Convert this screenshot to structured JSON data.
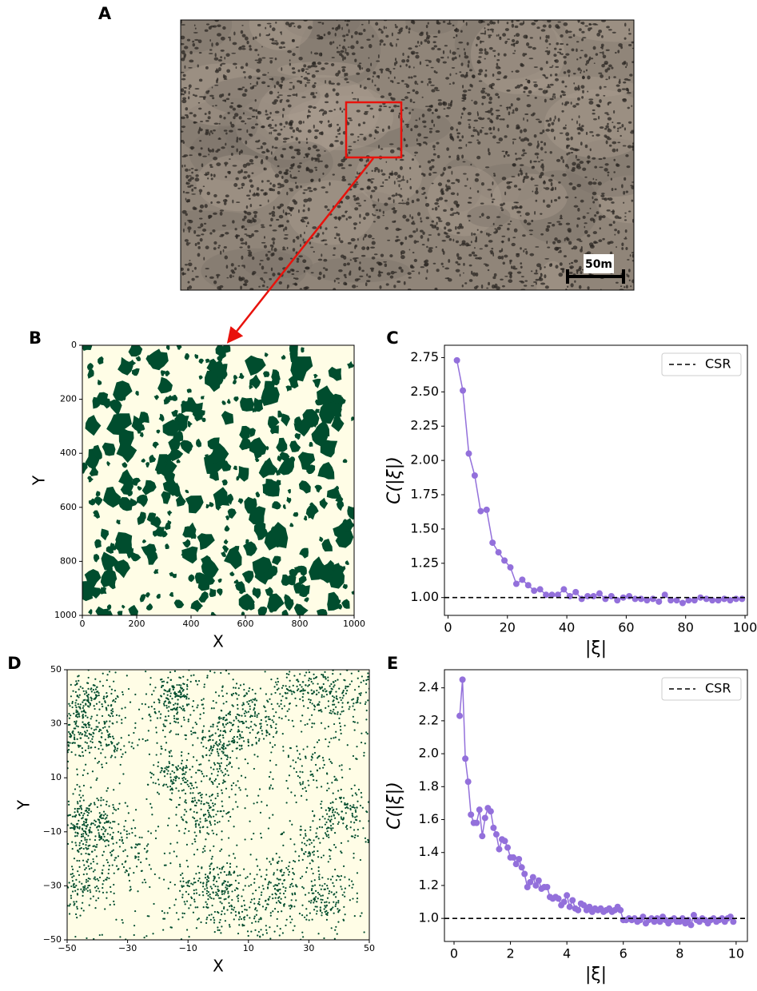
{
  "chart_data": [
    {
      "type": "photo",
      "panel_label": "A",
      "scale_bar": "50m"
    },
    {
      "type": "map",
      "panel_label": "B",
      "x_label": "X",
      "y_label": "Y",
      "xlim": [
        0,
        1000
      ],
      "ylim": [
        1000,
        0
      ],
      "xticks": [
        0,
        200,
        400,
        600,
        800,
        1000
      ],
      "yticks": [
        0,
        200,
        400,
        600,
        800,
        1000
      ],
      "background": "#fffde6",
      "color": "#004d2e"
    },
    {
      "type": "line",
      "panel_label": "C",
      "x_label": "|ξ|",
      "y_label": "C(|ξ|)",
      "xlim": [
        -1.2,
        100.8
      ],
      "ylim": [
        0.87,
        2.84
      ],
      "xticks": [
        0,
        20,
        40,
        60,
        80,
        100
      ],
      "yticks": [
        {
          "value": 1,
          "label": "1.00"
        },
        {
          "value": 1.25,
          "label": "1.25"
        },
        {
          "value": 1.5,
          "label": "1.50"
        },
        {
          "value": 1.75,
          "label": "1.75"
        },
        {
          "value": 2,
          "label": "2.00"
        },
        {
          "value": 2.25,
          "label": "2.25"
        },
        {
          "value": 2.5,
          "label": "2.50"
        },
        {
          "value": 2.75,
          "label": "2.75"
        }
      ],
      "series": [
        {
          "color": "#9370db",
          "x": [
            3,
            5,
            7,
            9,
            11,
            13,
            15,
            17,
            19,
            21,
            23,
            25,
            27,
            29,
            31,
            33,
            35,
            37,
            39,
            41,
            43,
            45,
            47,
            49,
            51,
            53,
            55,
            57,
            59,
            61,
            63,
            65,
            67,
            69,
            71,
            73,
            75,
            77,
            79,
            81,
            83,
            85,
            87,
            89,
            91,
            93,
            95,
            97,
            99
          ],
          "values": [
            2.73,
            2.51,
            2.05,
            1.89,
            1.63,
            1.64,
            1.4,
            1.33,
            1.27,
            1.22,
            1.1,
            1.13,
            1.09,
            1.05,
            1.06,
            1.02,
            1.02,
            1.02,
            1.06,
            1.01,
            1.04,
            0.99,
            1.01,
            1.01,
            1.03,
            0.99,
            1.01,
            0.98,
            1.0,
            1.01,
            0.99,
            0.99,
            0.98,
            0.99,
            0.97,
            1.02,
            0.98,
            0.98,
            0.96,
            0.98,
            0.98,
            1.0,
            0.99,
            0.98,
            0.98,
            0.99,
            0.98,
            0.99,
            0.99
          ]
        }
      ],
      "reference_line": {
        "name": "CSR",
        "value": 1,
        "color": "#000000"
      },
      "legend": "upper right"
    },
    {
      "type": "map",
      "panel_label": "D",
      "x_label": "X",
      "y_label": "Y",
      "xlim": [
        -50,
        50
      ],
      "ylim": [
        -50,
        50
      ],
      "xticks": [
        {
          "value": -50,
          "label": "−50"
        },
        {
          "value": -30,
          "label": "−30"
        },
        {
          "value": -10,
          "label": "−10"
        },
        10,
        30,
        50
      ],
      "yticks": [
        {
          "value": -50,
          "label": "−50"
        },
        {
          "value": -30,
          "label": "−30"
        },
        {
          "value": -10,
          "label": "−10"
        },
        10,
        30,
        50
      ],
      "background": "#fffde6",
      "color": "#004d2e"
    },
    {
      "type": "line",
      "panel_label": "E",
      "x_label": "|ξ|",
      "y_label": "C(|ξ|)",
      "xlim": [
        -0.34,
        10.4
      ],
      "ylim": [
        0.86,
        2.51
      ],
      "xticks": [
        0,
        2,
        4,
        6,
        8,
        10
      ],
      "yticks": [
        {
          "value": 1,
          "label": "1.0"
        },
        1.2,
        1.4,
        1.6,
        1.8,
        {
          "value": 2,
          "label": "2.0"
        },
        2.2,
        2.4
      ],
      "series": [
        {
          "color": "#9370db",
          "x": [
            0.2,
            0.3,
            0.4,
            0.5,
            0.6,
            0.7,
            0.8,
            0.9,
            1.0,
            1.1,
            1.2,
            1.3,
            1.4,
            1.5,
            1.6,
            1.7,
            1.8,
            1.9,
            2.0,
            2.1,
            2.2,
            2.3,
            2.4,
            2.5,
            2.6,
            2.7,
            2.8,
            2.9,
            3.0,
            3.1,
            3.2,
            3.3,
            3.4,
            3.5,
            3.6,
            3.7,
            3.8,
            3.9,
            4.0,
            4.1,
            4.2,
            4.3,
            4.4,
            4.5,
            4.6,
            4.7,
            4.8,
            4.9,
            5.0,
            5.1,
            5.2,
            5.3,
            5.4,
            5.5,
            5.6,
            5.7,
            5.8,
            5.9,
            6.0,
            6.1,
            6.2,
            6.3,
            6.4,
            6.5,
            6.6,
            6.7,
            6.8,
            6.9,
            7.0,
            7.1,
            7.2,
            7.3,
            7.4,
            7.5,
            7.6,
            7.7,
            7.8,
            7.9,
            8.0,
            8.1,
            8.2,
            8.3,
            8.4,
            8.5,
            8.6,
            8.7,
            8.8,
            8.9,
            9.0,
            9.1,
            9.2,
            9.3,
            9.4,
            9.5,
            9.6,
            9.7,
            9.8,
            9.9
          ],
          "values": [
            2.23,
            2.45,
            1.97,
            1.83,
            1.63,
            1.58,
            1.58,
            1.66,
            1.5,
            1.61,
            1.67,
            1.65,
            1.55,
            1.51,
            1.42,
            1.48,
            1.47,
            1.43,
            1.37,
            1.37,
            1.33,
            1.36,
            1.31,
            1.27,
            1.19,
            1.22,
            1.25,
            1.2,
            1.23,
            1.18,
            1.19,
            1.19,
            1.13,
            1.12,
            1.13,
            1.12,
            1.08,
            1.1,
            1.14,
            1.07,
            1.11,
            1.06,
            1.05,
            1.09,
            1.08,
            1.05,
            1.07,
            1.04,
            1.06,
            1.05,
            1.06,
            1.04,
            1.05,
            1.06,
            1.04,
            1.05,
            1.07,
            1.05,
            0.99,
            0.99,
            1.0,
            0.99,
            1.0,
            0.98,
            0.99,
            1.01,
            0.97,
            0.99,
            1.0,
            0.98,
            1.0,
            0.98,
            1.01,
            0.99,
            0.97,
            0.99,
            1.0,
            0.98,
            0.98,
            1.0,
            0.97,
            0.99,
            0.96,
            1.02,
            0.99,
            0.98,
            1.0,
            0.99,
            0.97,
            0.99,
            1.0,
            0.98,
            0.99,
            1.0,
            0.98,
            1.0,
            1.01,
            0.98
          ]
        }
      ],
      "reference_line": {
        "name": "CSR",
        "value": 1,
        "color": "#000000"
      },
      "legend": "upper right"
    }
  ]
}
